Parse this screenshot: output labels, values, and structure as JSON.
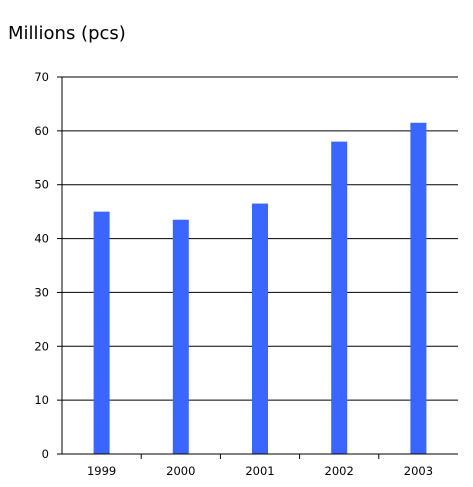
{
  "chart_data": {
    "type": "bar",
    "unit_label": "Millions (pcs)",
    "categories": [
      "1999",
      "2000",
      "2001",
      "2002",
      "2003"
    ],
    "values": [
      45,
      43.5,
      46.5,
      58,
      61.5
    ],
    "ylim": [
      0,
      70
    ],
    "y_ticks": [
      "0",
      "10",
      "20",
      "30",
      "40",
      "50",
      "60",
      "70"
    ],
    "grid": true,
    "legend": "none",
    "bar_color": "#3a66ff"
  }
}
